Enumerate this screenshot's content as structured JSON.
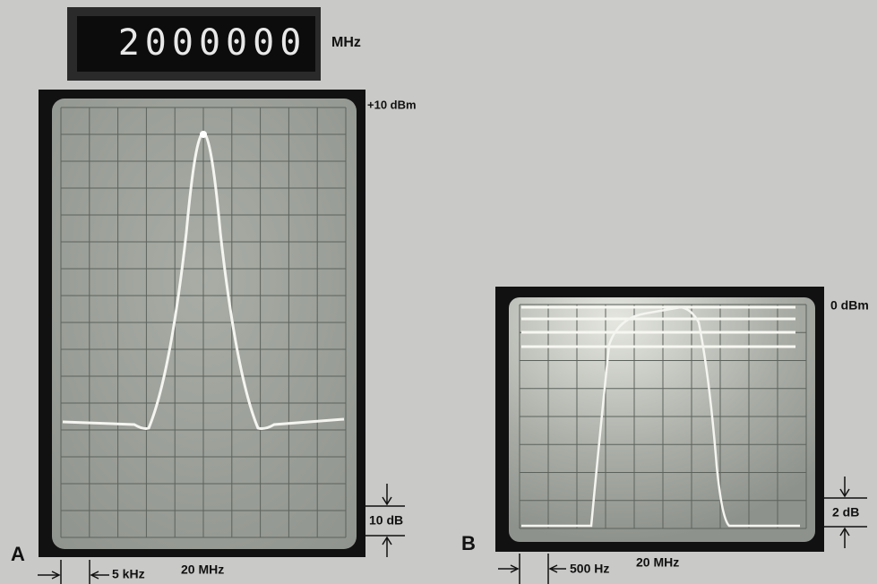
{
  "display": {
    "digits": "2000000",
    "unit": "MHz"
  },
  "panels": [
    {
      "label": "A",
      "ref_level": "+10 dBm",
      "scale": "10 dB",
      "span": "5 kHz",
      "center": "20 MHz"
    },
    {
      "label": "B",
      "ref_level": "0 dBm",
      "scale": "2 dB",
      "span": "500 Hz",
      "center": "20 MHz"
    }
  ]
}
